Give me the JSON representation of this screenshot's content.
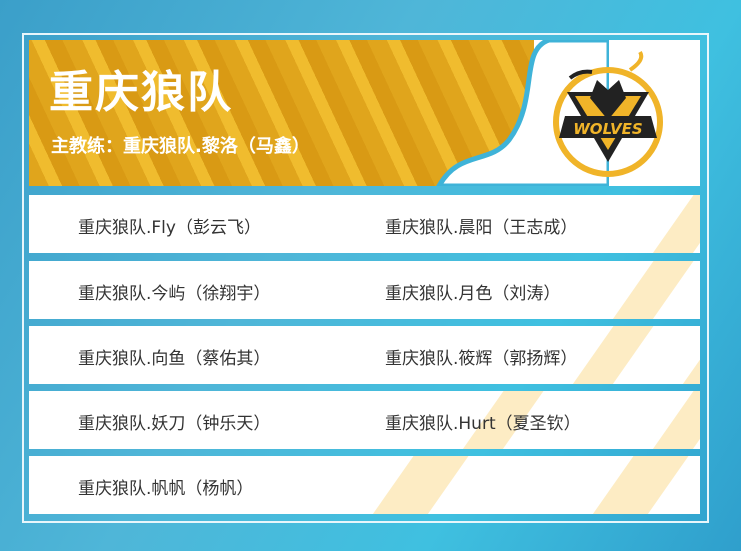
{
  "team": {
    "name": "重庆狼队",
    "coach": "主教练：重庆狼队.黎洛（马鑫）",
    "logo_text": "WOLVES",
    "accent": "#f0b429"
  },
  "players": [
    [
      "重庆狼队.Fly（彭云飞）",
      "重庆狼队.晨阳（王志成）"
    ],
    [
      "重庆狼队.今屿（徐翔宇）",
      "重庆狼队.月色（刘涛）"
    ],
    [
      "重庆狼队.向鱼（蔡佑其）",
      "重庆狼队.筱辉（郭扬辉）"
    ],
    [
      "重庆狼队.妖刀（钟乐天）",
      "重庆狼队.Hurt（夏圣钦）"
    ],
    [
      "重庆狼队.帆帆（杨帆）",
      ""
    ]
  ]
}
